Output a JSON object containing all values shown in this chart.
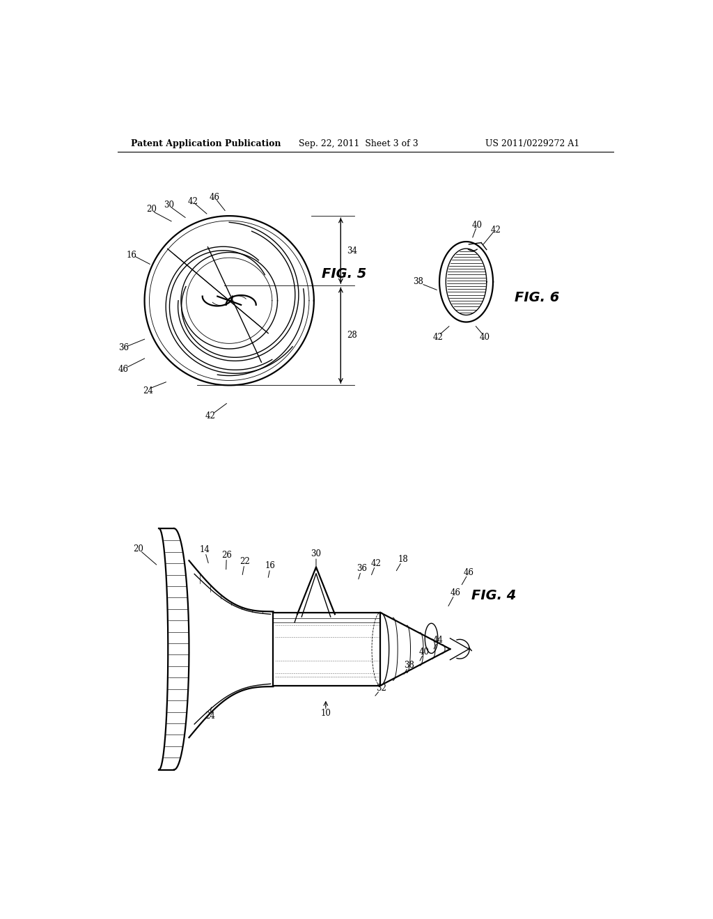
{
  "background_color": "#ffffff",
  "header_left": "Patent Application Publication",
  "header_center": "Sep. 22, 2011  Sheet 3 of 3",
  "header_right": "US 2011/0229272 A1",
  "fig5_label": "FIG. 5",
  "fig6_label": "FIG. 6",
  "fig4_label": "FIG. 4",
  "header_fontsize": 9,
  "ref_fontsize": 8.5,
  "fig_label_fontsize": 14,
  "lw": 1.0,
  "lw_thick": 1.6,
  "lw_thin": 0.6
}
